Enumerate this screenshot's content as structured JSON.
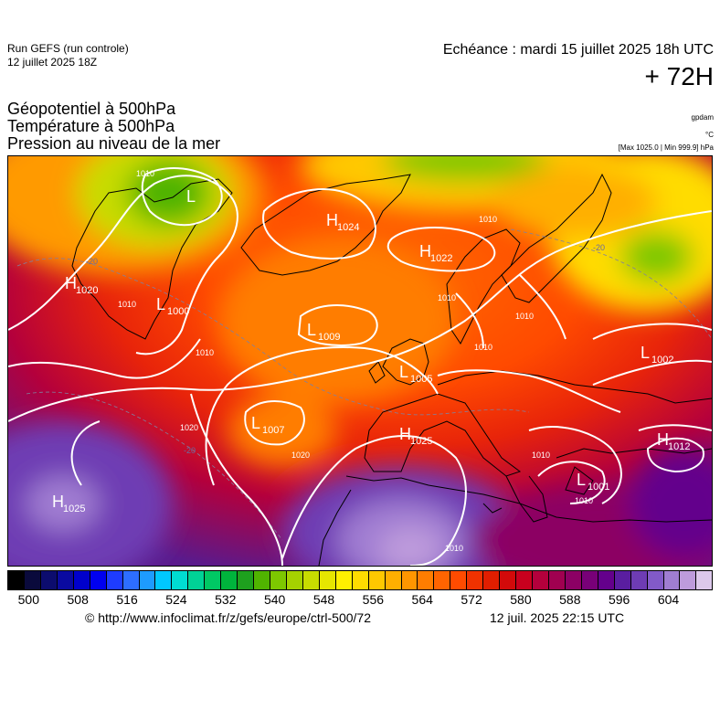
{
  "header": {
    "run_title": "Run GEFS (run controle)",
    "run_date": "12 juillet 2025 18Z",
    "valid_time": "Echéance : mardi 15 juillet 2025 18h UTC",
    "lead_time": "+ 72H"
  },
  "variables": {
    "line1": "Géopotentiel à 500hPa",
    "line2": "Température à 500hPa",
    "line3": "Pression au niveau de la mer"
  },
  "units": {
    "gpdam": "gpdam",
    "celsius": "°C",
    "pressure_range": "[Max 1025.0 | Min 999.9] hPa"
  },
  "pressure_centers": [
    {
      "type": "H",
      "value": "1024"
    },
    {
      "type": "H",
      "value": "1022"
    },
    {
      "type": "L",
      "value": ""
    },
    {
      "type": "H",
      "value": "1020"
    },
    {
      "type": "L",
      "value": "1000"
    },
    {
      "type": "L",
      "value": "1009"
    },
    {
      "type": "L",
      "value": "1005"
    },
    {
      "type": "L",
      "value": "1007"
    },
    {
      "type": "H",
      "value": "1025"
    },
    {
      "type": "H",
      "value": "1025"
    },
    {
      "type": "L",
      "value": "1002"
    },
    {
      "type": "H",
      "value": "1012"
    },
    {
      "type": "L",
      "value": "1001"
    }
  ],
  "isobar_labels": [
    "1010",
    "1010",
    "1010",
    "1010",
    "1010",
    "1010",
    "1020",
    "1020",
    "1010",
    "1010",
    "1010",
    "1010"
  ],
  "temperature_labels": [
    "-20",
    "-20",
    "-20"
  ],
  "colorbar": {
    "ticks": [
      "500",
      "508",
      "516",
      "524",
      "532",
      "540",
      "548",
      "556",
      "564",
      "572",
      "580",
      "588",
      "596",
      "604"
    ],
    "colors": [
      "#000000",
      "#0a0a3c",
      "#0c0c6e",
      "#0a0aa0",
      "#0000cc",
      "#0000f0",
      "#1e3cff",
      "#2d6eff",
      "#1e9bff",
      "#00c8ff",
      "#00dcd2",
      "#00d296",
      "#00c864",
      "#00b43c",
      "#1ea01e",
      "#50b400",
      "#7dc800",
      "#a5d200",
      "#c8dc00",
      "#e6e600",
      "#fff000",
      "#ffdc00",
      "#ffc800",
      "#ffaf00",
      "#ff9600",
      "#ff7d00",
      "#ff6400",
      "#ff4b00",
      "#f03200",
      "#e11e00",
      "#d20a0a",
      "#c8001e",
      "#b4003c",
      "#a00050",
      "#8c0064",
      "#780078",
      "#64008c",
      "#5a1ea0",
      "#6e3cb4",
      "#825ac8",
      "#a07dd2",
      "#be9bdc",
      "#dcc8eb"
    ]
  },
  "footer": {
    "credit_url": "© http://www.infoclimat.fr/z/gefs/europe/ctrl-500/72",
    "issue_time": "12 juil. 2025 22:15 UTC"
  }
}
